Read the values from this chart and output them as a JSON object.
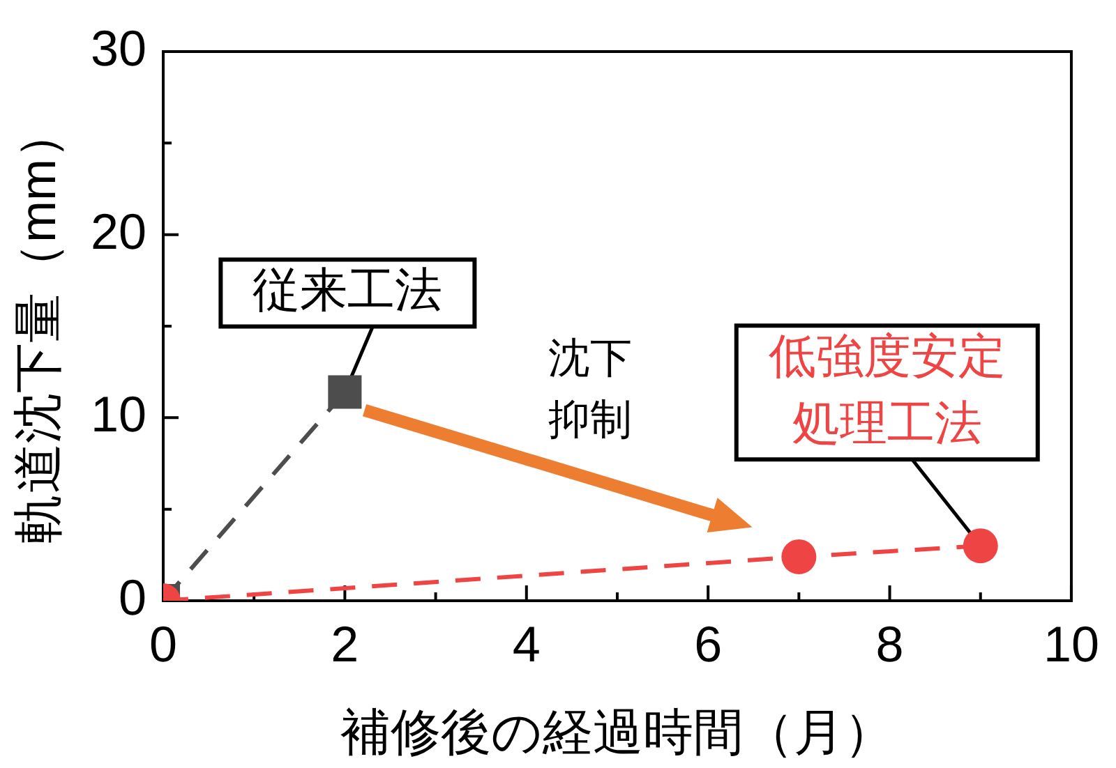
{
  "chart_data": {
    "type": "line",
    "xlabel": "補修後の経過時間（月）",
    "ylabel": "軌道沈下量（mm）",
    "xlim": [
      0,
      10
    ],
    "xticks": [
      0,
      {
        "value": 1,
        "label": null
      },
      2,
      {
        "value": 3,
        "label": null
      },
      4,
      {
        "value": 5,
        "label": null
      },
      6,
      {
        "value": 7,
        "label": null
      },
      8,
      {
        "value": 9,
        "label": null
      },
      10
    ],
    "ylim": [
      0,
      30
    ],
    "yticks": [
      0,
      {
        "value": 5,
        "label": null
      },
      10,
      {
        "value": 15,
        "label": null
      },
      20,
      {
        "value": 25,
        "label": null
      },
      30
    ],
    "grid": false,
    "legend": false,
    "line_style": "dashed",
    "annotations": [
      "沈下抑制"
    ],
    "series": [
      {
        "name": "従来工法",
        "color": "#4d4d4d",
        "marker": "square",
        "x": [
          0,
          2
        ],
        "values": [
          0,
          11.4
        ]
      },
      {
        "name": "低強度安定処理工法",
        "color": "#ef4444",
        "marker": "circle",
        "x": [
          0,
          7,
          9
        ],
        "values": [
          0,
          2.4,
          3.0
        ]
      }
    ]
  }
}
